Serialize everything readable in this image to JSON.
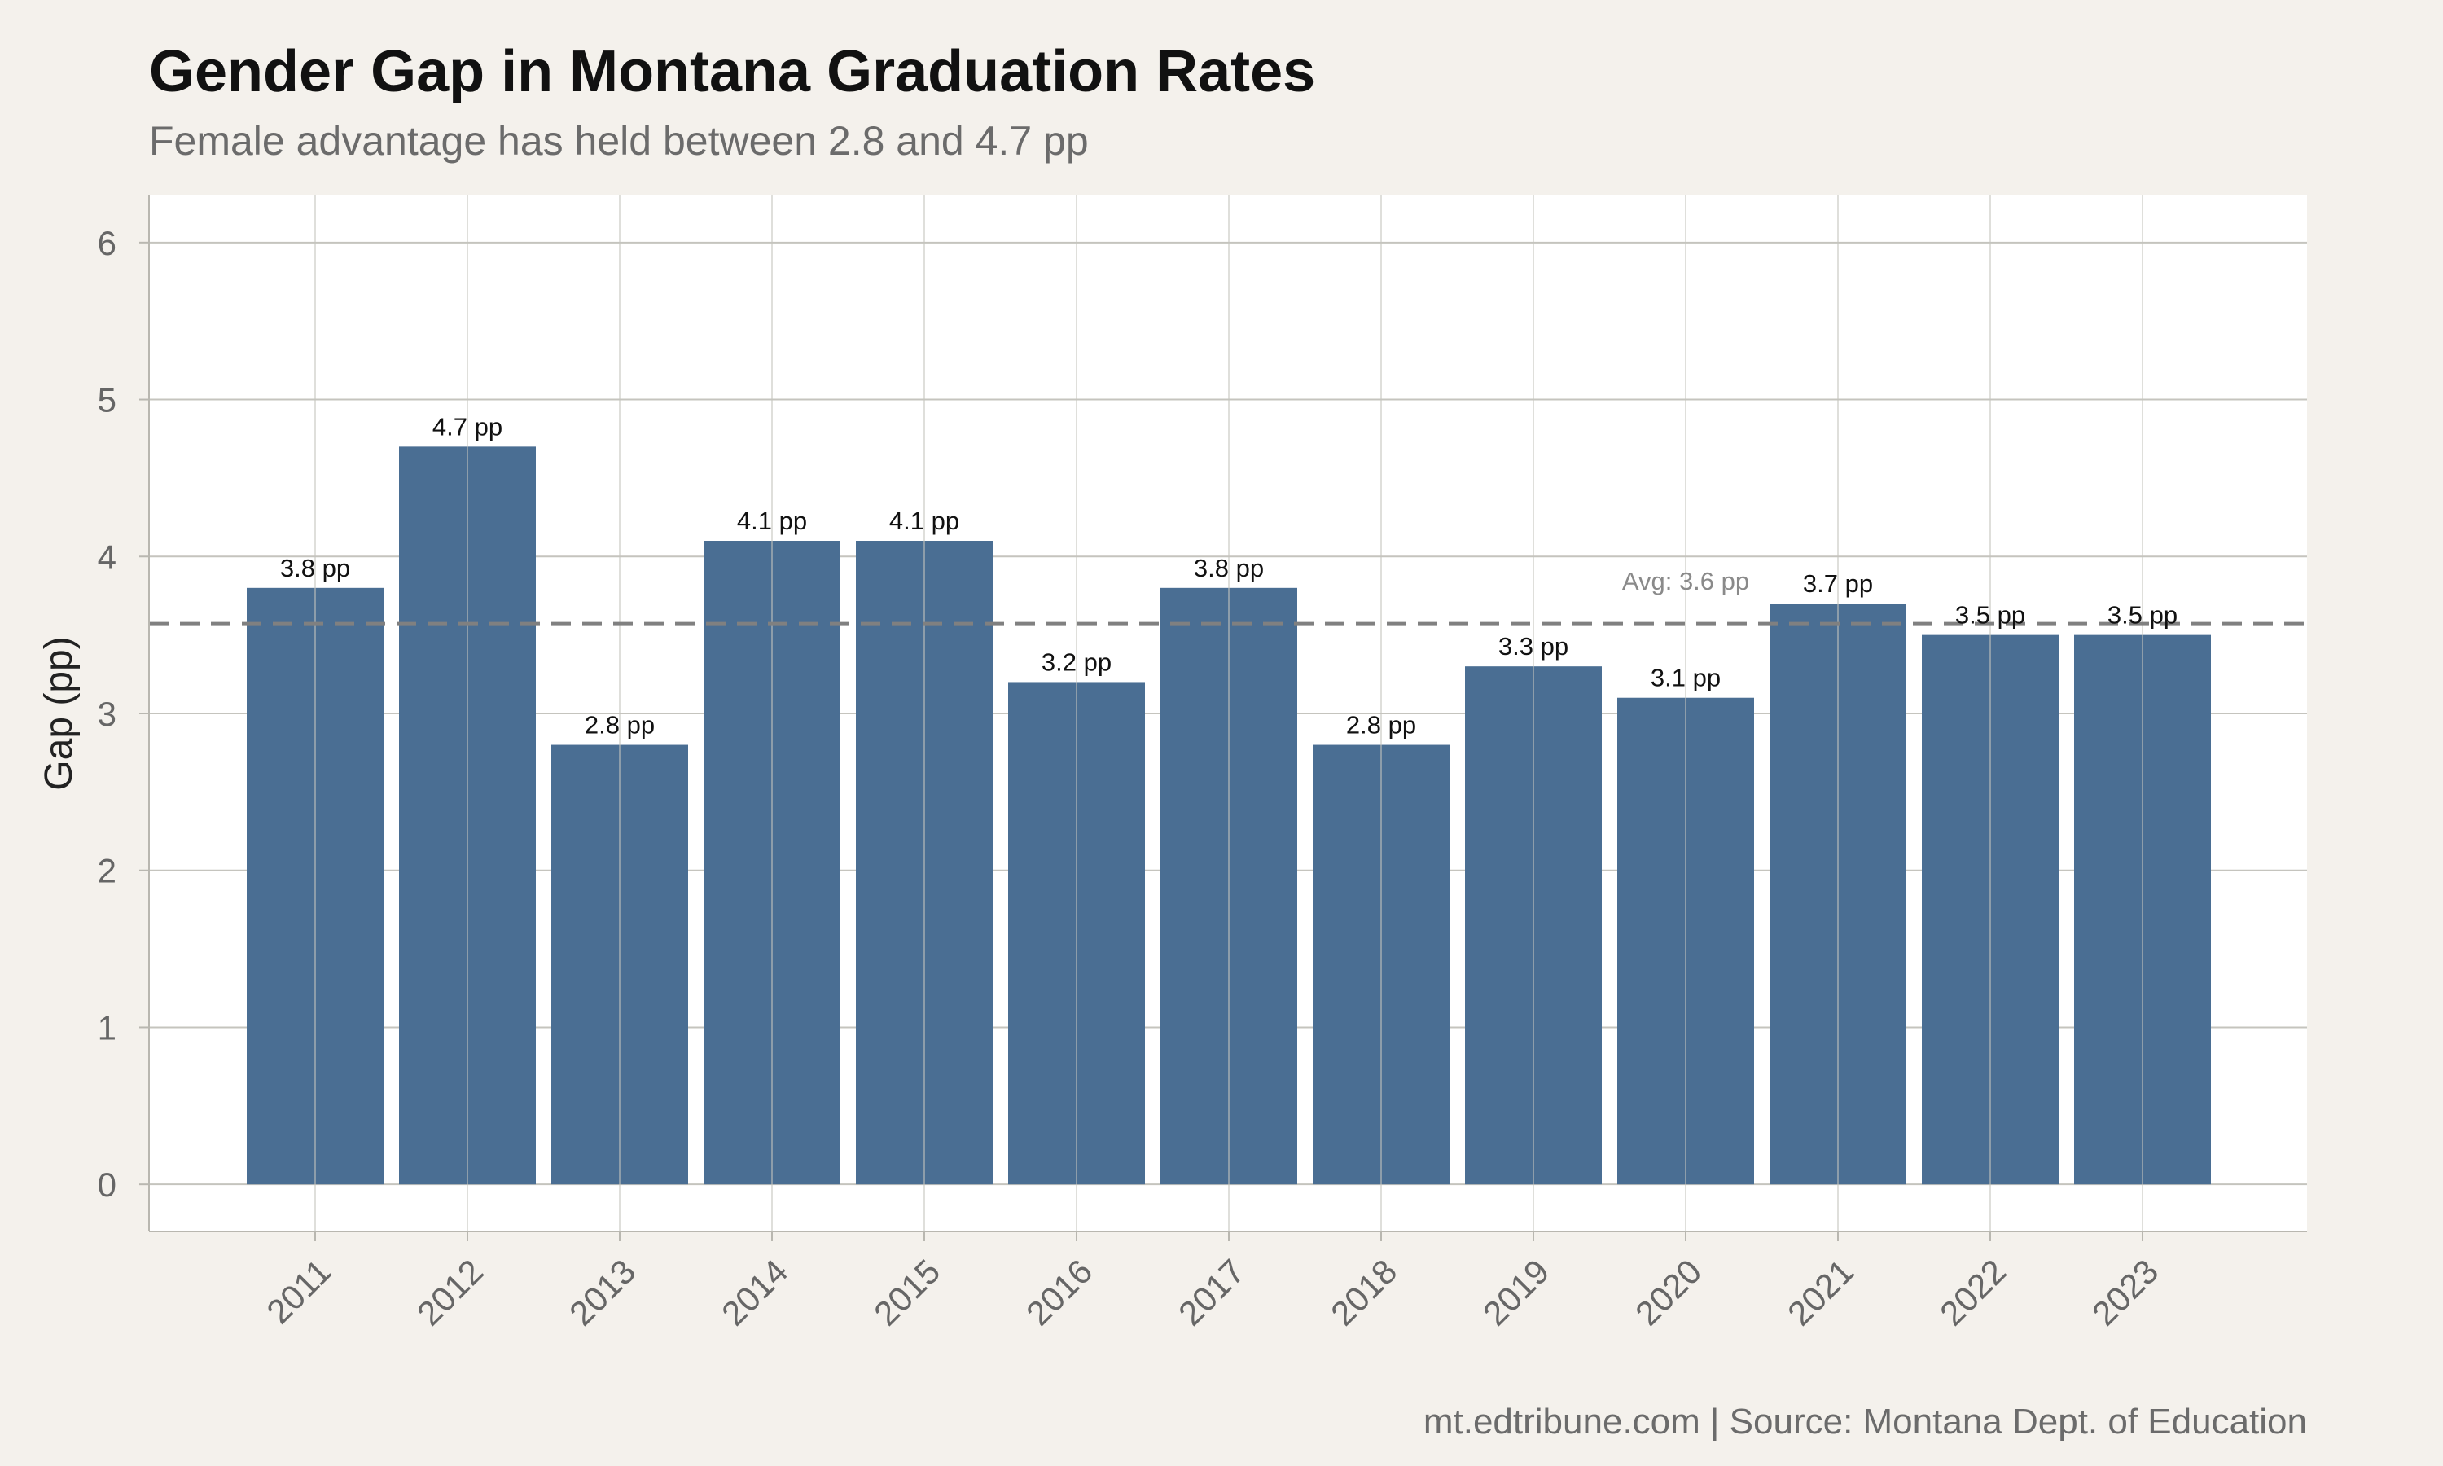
{
  "chart_data": {
    "type": "bar",
    "title": "Gender Gap in Montana Graduation Rates",
    "subtitle": "Female advantage has held between 2.8 and 4.7 pp",
    "xlabel": "",
    "ylabel": "Gap (pp)",
    "categories": [
      "2011",
      "2012",
      "2013",
      "2014",
      "2015",
      "2016",
      "2017",
      "2018",
      "2019",
      "2020",
      "2021",
      "2022",
      "2023"
    ],
    "values": [
      3.8,
      4.7,
      2.8,
      4.1,
      4.1,
      3.2,
      3.8,
      2.8,
      3.3,
      3.1,
      3.7,
      3.5,
      3.5
    ],
    "data_labels": [
      "3.8 pp",
      "4.7 pp",
      "2.8 pp",
      "4.1 pp",
      "4.1 pp",
      "3.2 pp",
      "3.8 pp",
      "2.8 pp",
      "3.3 pp",
      "3.1 pp",
      "3.7 pp",
      "3.5 pp",
      "3.5 pp"
    ],
    "ylim": [
      -0.3,
      6.3
    ],
    "yticks": [
      "0",
      "1",
      "2",
      "3",
      "4",
      "5",
      "6"
    ],
    "reference_line": {
      "value": 3.57,
      "label": "Avg: 3.6 pp",
      "style": "dashed"
    },
    "grid": true,
    "legend": "none",
    "caption": "mt.edtribune.com | Source: Montana Dept. of Education",
    "colors": {
      "bar": "#4a6e93",
      "background": "#f4f1ec",
      "panel": "#ffffff",
      "grid": "#c5c4be",
      "reference": "#808080"
    }
  }
}
